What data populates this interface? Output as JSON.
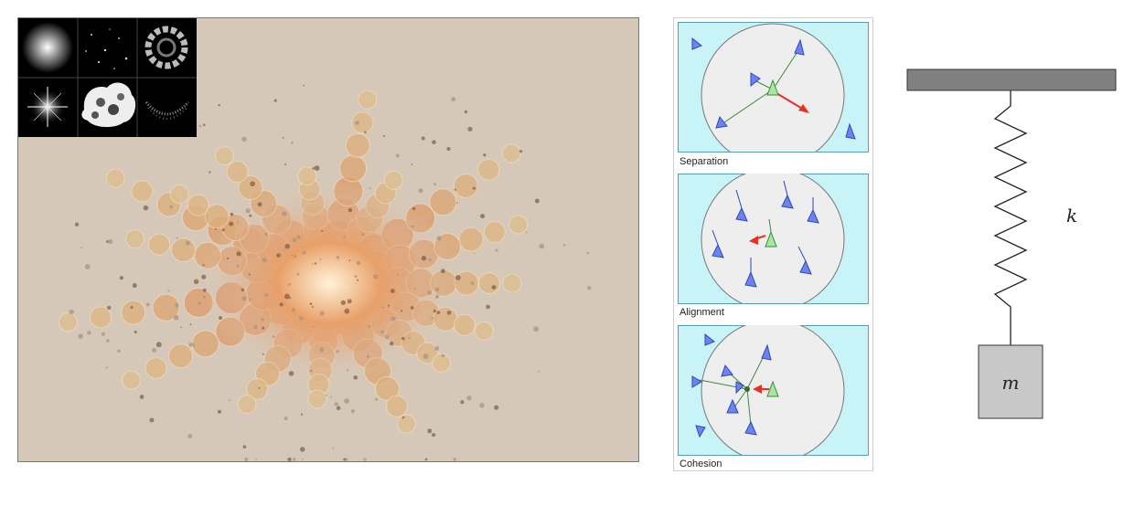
{
  "explosion": {
    "thumbnail_icons": [
      "soft-glow-icon",
      "sparkle-dots-icon",
      "smoke-ring-icon",
      "star-flare-icon",
      "cloud-puff-icon",
      "dust-streak-icon"
    ],
    "background_color": "#d6c8b8"
  },
  "boids": {
    "captions": {
      "separation": "Separation",
      "alignment": "Alignment",
      "cohesion": "Cohesion"
    },
    "colors": {
      "field": "#c8f4f8",
      "circle": "#eeeeee",
      "boid": "#6b84f0",
      "focus": "#a8e6a1",
      "arrow": "#e53222"
    }
  },
  "spring": {
    "stiffness_label": "k",
    "mass_label": "m"
  }
}
